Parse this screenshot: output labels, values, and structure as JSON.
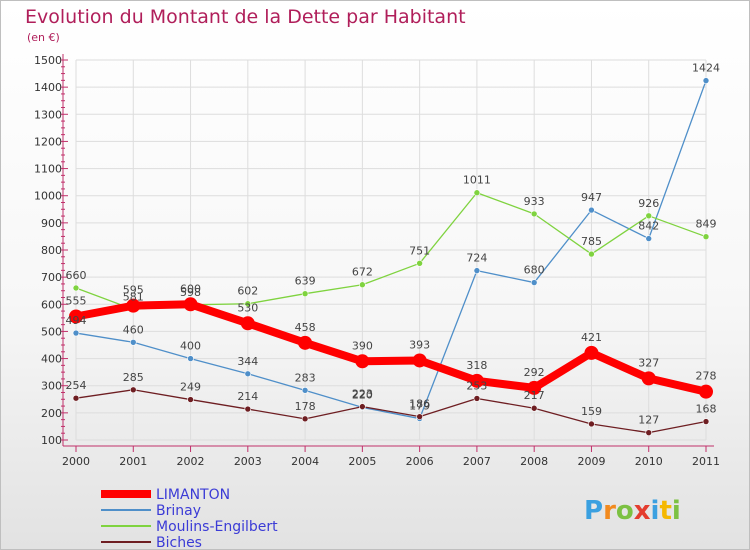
{
  "chart_data": {
    "type": "line",
    "title": "Evolution du Montant de la Dette par Habitant",
    "subtitle": "(en €)",
    "x": [
      "2000",
      "2001",
      "2002",
      "2003",
      "2004",
      "2005",
      "2006",
      "2007",
      "2008",
      "2009",
      "2010",
      "2011"
    ],
    "ylim": [
      100,
      1500
    ],
    "yticks": [
      100,
      200,
      300,
      400,
      500,
      600,
      700,
      800,
      900,
      1000,
      1100,
      1200,
      1300,
      1400,
      1500
    ],
    "series": [
      {
        "name": "Brinay",
        "color": "#4f8fc9",
        "values": [
          494,
          460,
          400,
          344,
          283,
          220,
          179,
          724,
          680,
          947,
          842,
          1424
        ]
      },
      {
        "name": "Moulins-Engilbert",
        "color": "#7fd33f",
        "values": [
          660,
          581,
          598,
          602,
          639,
          672,
          751,
          1011,
          933,
          785,
          926,
          849
        ]
      },
      {
        "name": "Biches",
        "color": "#6e1e22",
        "values": [
          254,
          285,
          249,
          214,
          178,
          223,
          186,
          253,
          217,
          159,
          127,
          168
        ]
      },
      {
        "name": "LIMANTON",
        "color": "#ff0000",
        "values": [
          555,
          595,
          600,
          530,
          458,
          390,
          393,
          318,
          292,
          421,
          327,
          278
        ]
      }
    ],
    "legend": [
      {
        "name": "LIMANTON",
        "color": "#ff0000",
        "text_color": "#3b3bd6"
      },
      {
        "name": "Brinay",
        "color": "#4f8fc9",
        "text_color": "#3b3bd6"
      },
      {
        "name": "Moulins-Engilbert",
        "color": "#7fd33f",
        "text_color": "#3b3bd6"
      },
      {
        "name": "Biches",
        "color": "#6e1e22",
        "text_color": "#3b3bd6"
      }
    ]
  },
  "brand": {
    "letters": [
      "P",
      "r",
      "o",
      "x",
      "i",
      "t",
      "i"
    ],
    "colors": [
      "#3aa0e0",
      "#f28a1e",
      "#7cc142",
      "#e43d2f",
      "#3aa0e0",
      "#f5b800",
      "#7cc142"
    ]
  }
}
